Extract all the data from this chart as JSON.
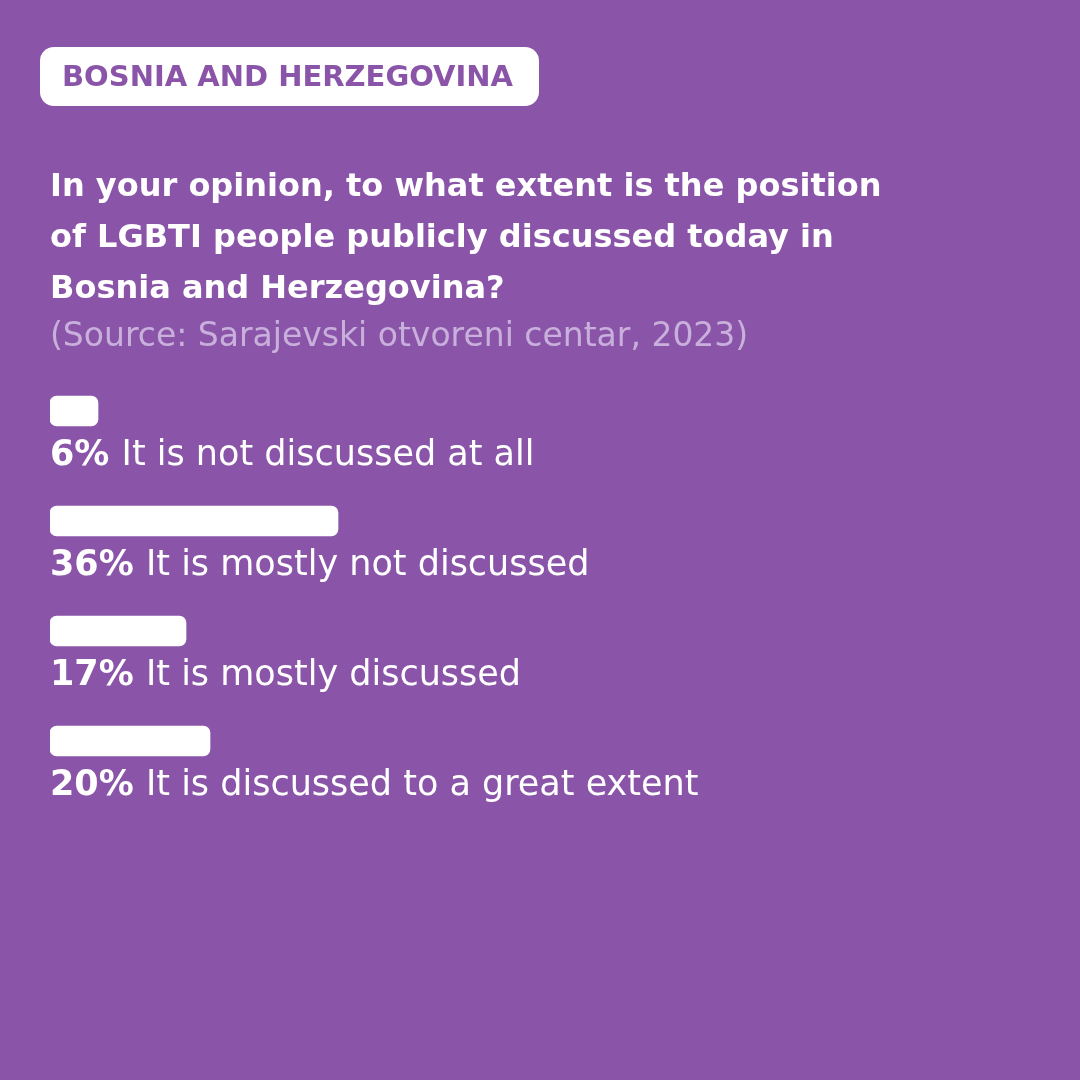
{
  "chart_data": {
    "type": "bar",
    "orientation": "horizontal",
    "subtitle": "BOSNIA AND HERZEGOVINA",
    "title": "In your opinion, to what extent is the position of LGBTI people publicly discussed today in Bosnia and Herzegovina?",
    "annotations": [
      "(Source: Sarajevski otvoreni centar, 2023)"
    ],
    "categories": [
      "It is not discussed at all",
      "It is mostly not discussed",
      "It is mostly discussed",
      "It is discussed to a great extent"
    ],
    "values": [
      6,
      36,
      17,
      20
    ],
    "value_labels": [
      "6%",
      "36%",
      "17%",
      "20%"
    ],
    "color": "#ffffff",
    "legend": false
  }
}
